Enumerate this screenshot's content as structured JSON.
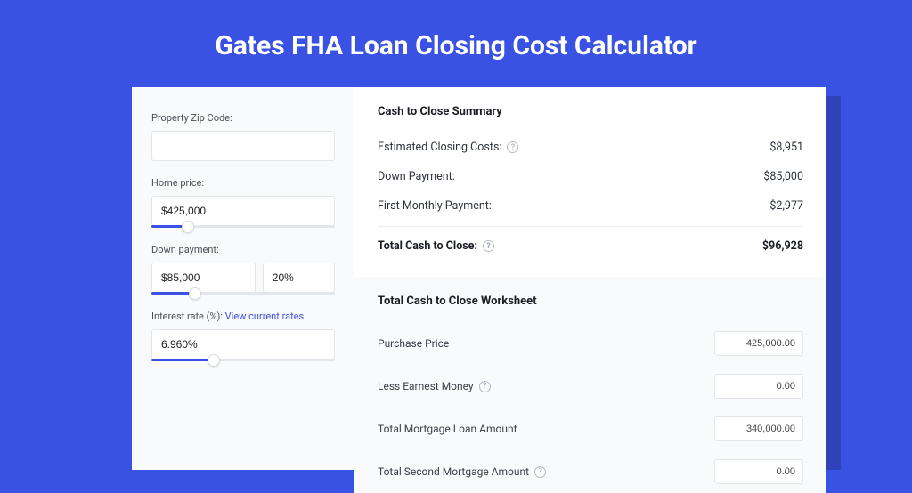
{
  "title": "Gates FHA Loan Closing Cost Calculator",
  "colors": {
    "page_bg": "#3a52e4",
    "card_bg": "#ffffff",
    "panel_bg": "#f9fafc",
    "shadow": "#2f42b8",
    "accent": "#3a52e4",
    "border": "#e2e5ea",
    "text_dark": "#1a1d23",
    "text_body": "#3a3f48",
    "text_muted": "#9aa1ad"
  },
  "inputs": {
    "zip": {
      "label": "Property Zip Code:",
      "value": ""
    },
    "home_price": {
      "label": "Home price:",
      "value": "$425,000",
      "slider_pct": 20
    },
    "down_payment": {
      "label": "Down payment:",
      "value": "$85,000",
      "pct_value": "20%",
      "slider_pct": 24
    },
    "interest_rate": {
      "label": "Interest rate (%):",
      "link_text": "View current rates",
      "value": "6.960%",
      "slider_pct": 34
    }
  },
  "summary": {
    "title": "Cash to Close Summary",
    "rows": [
      {
        "label": "Estimated Closing Costs:",
        "help": true,
        "value": "$8,951"
      },
      {
        "label": "Down Payment:",
        "help": false,
        "value": "$85,000"
      },
      {
        "label": "First Monthly Payment:",
        "help": false,
        "value": "$2,977"
      }
    ],
    "total": {
      "label": "Total Cash to Close:",
      "help": true,
      "value": "$96,928"
    }
  },
  "worksheet": {
    "title": "Total Cash to Close Worksheet",
    "rows": [
      {
        "label": "Purchase Price",
        "help": false,
        "value": "425,000.00"
      },
      {
        "label": "Less Earnest Money",
        "help": true,
        "value": "0.00"
      },
      {
        "label": "Total Mortgage Loan Amount",
        "help": false,
        "value": "340,000.00"
      },
      {
        "label": "Total Second Mortgage Amount",
        "help": true,
        "value": "0.00"
      }
    ]
  }
}
